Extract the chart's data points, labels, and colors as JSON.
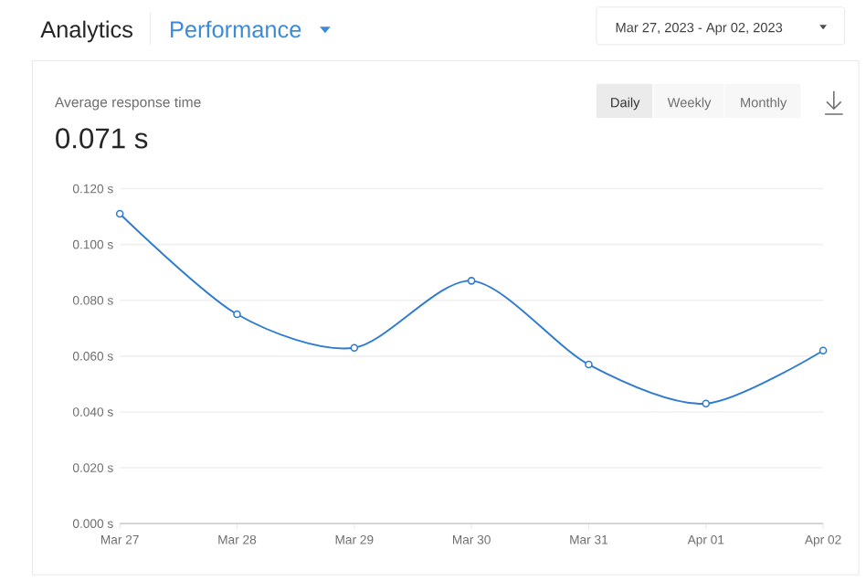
{
  "chart_data": {
    "type": "line",
    "title": "Analytics",
    "subtitle": "Performance",
    "annotations": [
      "Mar 27, 2023 - Apr 02, 2023",
      "Average response time",
      "0.071 s",
      "Daily",
      "Weekly",
      "Monthly"
    ],
    "categories": [
      "Mar 27",
      "Mar 28",
      "Mar 29",
      "Mar 30",
      "Mar 31",
      "Apr 01",
      "Apr 02"
    ],
    "values": [
      0.111,
      0.075,
      0.063,
      0.087,
      0.057,
      0.043,
      0.062
    ],
    "color": "#2f7bcf",
    "ylim": [
      0,
      0.12
    ],
    "yticks": [
      {
        "value": 0,
        "label": "0.000 s"
      },
      {
        "value": 0.02,
        "label": "0.020 s"
      },
      {
        "value": 0.04,
        "label": "0.040 s"
      },
      {
        "value": 0.06,
        "label": "0.060 s"
      },
      {
        "value": 0.08,
        "label": "0.080 s"
      },
      {
        "value": 0.1,
        "label": "0.100 s"
      },
      {
        "value": 0.12,
        "label": "0.120 s"
      }
    ],
    "grid": "y",
    "marker": "circle",
    "line_style": "solid"
  }
}
